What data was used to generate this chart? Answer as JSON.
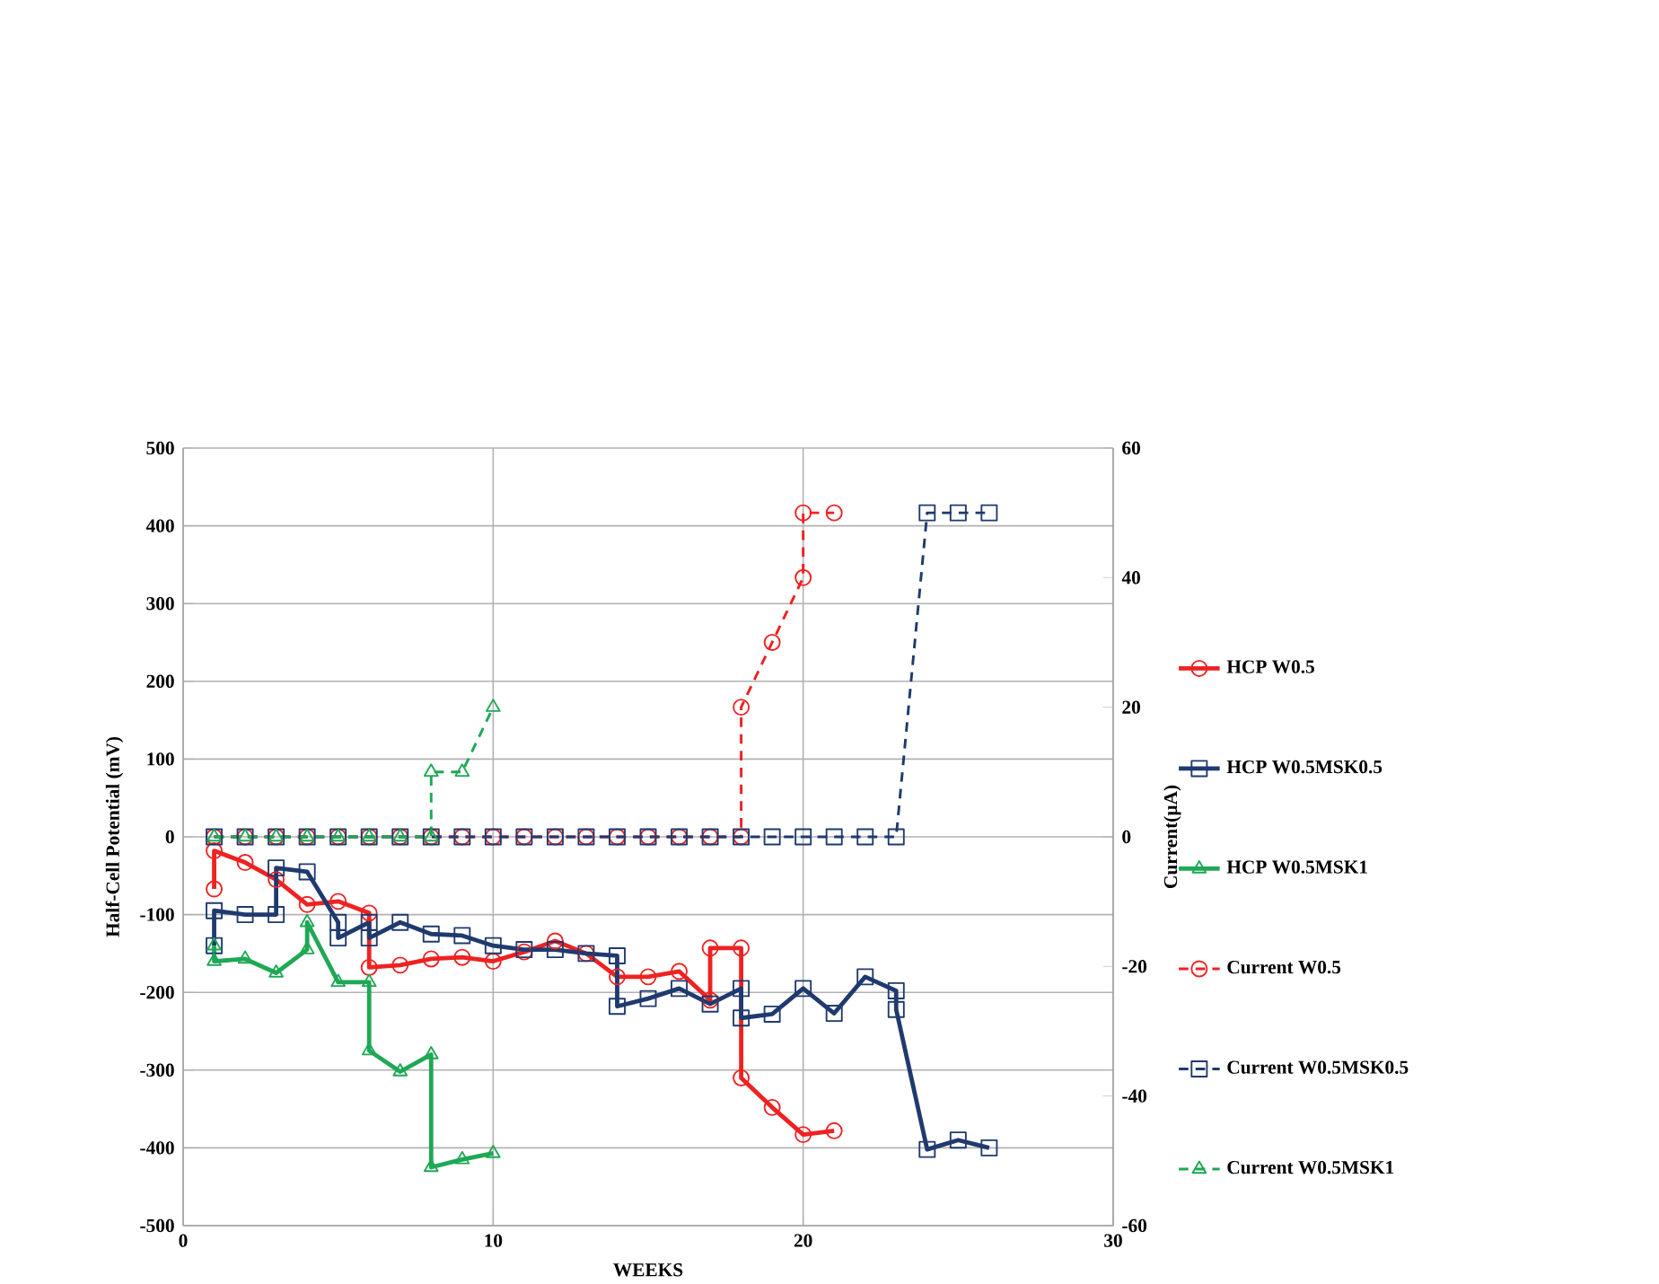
{
  "chart_data": {
    "type": "line",
    "xlabel": "WEEKS",
    "ylabel": "Half-Cell Potential (mV)",
    "y2label": "Current(µA)",
    "xlim": [
      0,
      30
    ],
    "xticks": [
      0,
      10,
      20,
      30
    ],
    "ylim": [
      -500,
      500
    ],
    "yticks": [
      -500,
      -400,
      -300,
      -200,
      -100,
      0,
      100,
      200,
      300,
      400,
      500
    ],
    "y2lim": [
      -60,
      60
    ],
    "y2ticks": [
      -60,
      -40,
      -20,
      0,
      20,
      40,
      60
    ],
    "grid": true,
    "legend": "right",
    "series": [
      {
        "name": "HCP W0.5",
        "color": "#ee2222",
        "marker": "circle",
        "line_style": "solid",
        "x": [
          1,
          1,
          2,
          3,
          4,
          5,
          6,
          6,
          7,
          8,
          9,
          10,
          11,
          12,
          13,
          14,
          15,
          16,
          17,
          17,
          18,
          18,
          19,
          20,
          21
        ],
        "values": [
          -67,
          -18,
          -33,
          -55,
          -87,
          -83,
          -98,
          -168,
          -165,
          -157,
          -155,
          -160,
          -148,
          -134,
          -150,
          -180,
          -180,
          -173,
          -210,
          -143,
          -143,
          -310,
          -348,
          -383,
          -378
        ]
      },
      {
        "name": "HCP W0.5MSK0.5",
        "color": "#1f3a6e",
        "marker": "square",
        "line_style": "solid",
        "x": [
          1,
          1,
          2,
          3,
          3,
          4,
          5,
          5,
          6,
          6,
          7,
          8,
          9,
          10,
          11,
          12,
          13,
          14,
          14,
          15,
          16,
          17,
          18,
          18,
          19,
          20,
          21,
          22,
          23,
          23,
          24,
          25,
          26
        ],
        "values": [
          -140,
          -95,
          -100,
          -100,
          -40,
          -45,
          -110,
          -130,
          -110,
          -130,
          -110,
          -125,
          -127,
          -140,
          -145,
          -145,
          -150,
          -153,
          -218,
          -208,
          -195,
          -215,
          -195,
          -233,
          -228,
          -195,
          -227,
          -180,
          -198,
          -222,
          -402,
          -390,
          -400
        ]
      },
      {
        "name": "HCP W0.5MSK1",
        "color": "#1fa855",
        "marker": "triangle",
        "line_style": "solid",
        "x": [
          1,
          1,
          2,
          3,
          4,
          4,
          5,
          6,
          6,
          7,
          8,
          8,
          9,
          10
        ],
        "values": [
          -140,
          -160,
          -157,
          -175,
          -145,
          -110,
          -187,
          -187,
          -275,
          -302,
          -280,
          -425,
          -415,
          -407
        ]
      },
      {
        "name": "Current W0.5",
        "color": "#ee2222",
        "marker": "circle",
        "line_style": "dashed",
        "axis": "y2",
        "x": [
          1,
          2,
          3,
          4,
          5,
          6,
          7,
          8,
          9,
          10,
          11,
          12,
          13,
          14,
          15,
          16,
          17,
          18,
          18,
          19,
          20,
          20,
          21
        ],
        "values": [
          0,
          0,
          0,
          0,
          0,
          0,
          0,
          0,
          0,
          0,
          0,
          0,
          0,
          0,
          0,
          0,
          0,
          0,
          20,
          30,
          40,
          50,
          50
        ]
      },
      {
        "name": "Current W0.5MSK0.5",
        "color": "#1f3a6e",
        "marker": "square",
        "line_style": "dashed",
        "axis": "y2",
        "x": [
          1,
          2,
          3,
          4,
          5,
          6,
          7,
          8,
          9,
          10,
          11,
          12,
          13,
          14,
          15,
          16,
          17,
          18,
          19,
          20,
          21,
          22,
          23,
          24,
          25,
          26
        ],
        "values": [
          0,
          0,
          0,
          0,
          0,
          0,
          0,
          0,
          0,
          0,
          0,
          0,
          0,
          0,
          0,
          0,
          0,
          0,
          0,
          0,
          0,
          0,
          0,
          50,
          50,
          50
        ]
      },
      {
        "name": "Current W0.5MSK1",
        "color": "#1fa855",
        "marker": "triangle",
        "line_style": "dashed",
        "axis": "y2",
        "x": [
          1,
          2,
          3,
          4,
          5,
          6,
          7,
          8,
          8,
          9,
          10
        ],
        "values": [
          0,
          0,
          0,
          0,
          0,
          0,
          0,
          0,
          10,
          10,
          20
        ]
      }
    ]
  }
}
